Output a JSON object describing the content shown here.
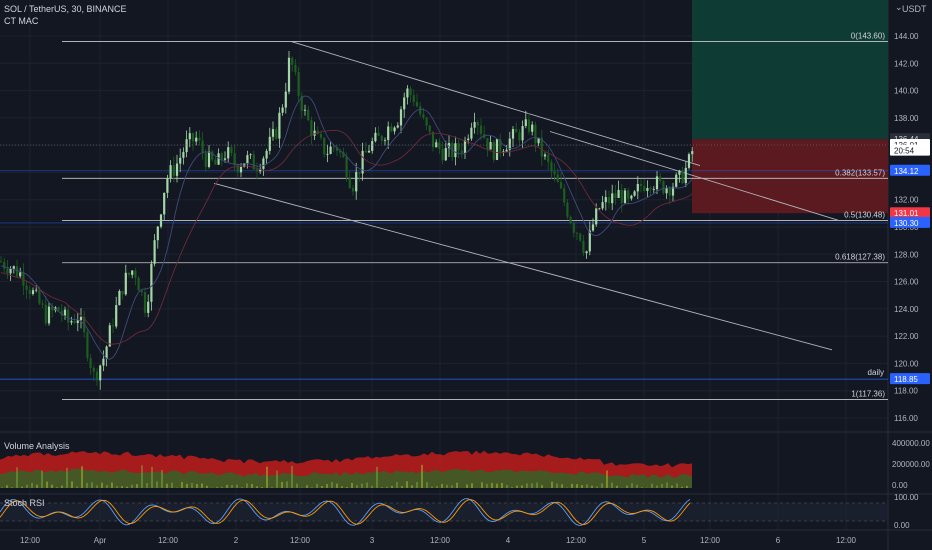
{
  "header": {
    "symbol_line": "SOL / TetherUS, 30, BINANCE",
    "indicator_line": "CT MAC",
    "currency": "USDT",
    "currency_menu": "⌄"
  },
  "panes": {
    "volume_label": "Volume Analysis",
    "stoch_label": "Stoch RSI"
  },
  "colors": {
    "background": "#131722",
    "grid": "#1e222d",
    "up": "#a5d6a7",
    "down": "#1b5e20",
    "fib_line": "#c8c8c8",
    "channel": "#b2b5be",
    "target_zone": "#0e3b34",
    "stop_zone": "#5a1a1f",
    "volume_fill": "#b71c1c",
    "volume_inner": "#3b5e27",
    "stoch_k": "#5b9cf6",
    "stoch_d": "#ff9800",
    "accent_blue": "#2962ff"
  },
  "chart_data": {
    "type": "candlestick",
    "symbol": "SOL / TetherUS",
    "interval": "30",
    "exchange": "BINANCE",
    "ylim": [
      115,
      145
    ],
    "y_ticks": [
      "144.00",
      "142.00",
      "140.00",
      "138.00",
      "136.00",
      "134.00",
      "132.00",
      "130.00",
      "128.00",
      "126.00",
      "124.00",
      "122.00",
      "120.00",
      "118.00",
      "116.00"
    ],
    "x_ticks": [
      "12:00",
      "Apr",
      "12:00",
      "2",
      "12:00",
      "3",
      "12:00",
      "4",
      "12:00",
      "5",
      "12:00",
      "6",
      "12:00"
    ],
    "close_path": [
      {
        "x": 0,
        "y": 127.5
      },
      {
        "x": 12,
        "y": 127.0
      },
      {
        "x": 22,
        "y": 126.5
      },
      {
        "x": 34,
        "y": 125.0
      },
      {
        "x": 46,
        "y": 123.5
      },
      {
        "x": 58,
        "y": 124.0
      },
      {
        "x": 68,
        "y": 123.0
      },
      {
        "x": 78,
        "y": 123.5
      },
      {
        "x": 86,
        "y": 121.5
      },
      {
        "x": 94,
        "y": 119.0
      },
      {
        "x": 104,
        "y": 120.5
      },
      {
        "x": 114,
        "y": 123.5
      },
      {
        "x": 124,
        "y": 126.0
      },
      {
        "x": 134,
        "y": 127.0
      },
      {
        "x": 146,
        "y": 124.0
      },
      {
        "x": 156,
        "y": 129.5
      },
      {
        "x": 166,
        "y": 133.5
      },
      {
        "x": 176,
        "y": 134.5
      },
      {
        "x": 186,
        "y": 136.0
      },
      {
        "x": 196,
        "y": 136.5
      },
      {
        "x": 206,
        "y": 135.0
      },
      {
        "x": 216,
        "y": 134.5
      },
      {
        "x": 226,
        "y": 135.5
      },
      {
        "x": 236,
        "y": 134.5
      },
      {
        "x": 246,
        "y": 135.0
      },
      {
        "x": 256,
        "y": 134.5
      },
      {
        "x": 266,
        "y": 135.5
      },
      {
        "x": 276,
        "y": 137.0
      },
      {
        "x": 284,
        "y": 139.5
      },
      {
        "x": 290,
        "y": 142.5
      },
      {
        "x": 296,
        "y": 140.5
      },
      {
        "x": 306,
        "y": 138.0
      },
      {
        "x": 316,
        "y": 136.5
      },
      {
        "x": 326,
        "y": 135.5
      },
      {
        "x": 336,
        "y": 136.0
      },
      {
        "x": 346,
        "y": 134.5
      },
      {
        "x": 352,
        "y": 133.0
      },
      {
        "x": 360,
        "y": 134.5
      },
      {
        "x": 370,
        "y": 136.0
      },
      {
        "x": 380,
        "y": 136.5
      },
      {
        "x": 390,
        "y": 137.5
      },
      {
        "x": 398,
        "y": 138.0
      },
      {
        "x": 406,
        "y": 140.0
      },
      {
        "x": 414,
        "y": 139.5
      },
      {
        "x": 424,
        "y": 137.5
      },
      {
        "x": 434,
        "y": 136.0
      },
      {
        "x": 444,
        "y": 135.5
      },
      {
        "x": 454,
        "y": 135.5
      },
      {
        "x": 464,
        "y": 136.0
      },
      {
        "x": 474,
        "y": 138.5
      },
      {
        "x": 482,
        "y": 137.0
      },
      {
        "x": 492,
        "y": 135.5
      },
      {
        "x": 502,
        "y": 136.0
      },
      {
        "x": 512,
        "y": 136.5
      },
      {
        "x": 522,
        "y": 137.0
      },
      {
        "x": 530,
        "y": 137.5
      },
      {
        "x": 538,
        "y": 136.0
      },
      {
        "x": 548,
        "y": 134.5
      },
      {
        "x": 558,
        "y": 133.0
      },
      {
        "x": 566,
        "y": 131.5
      },
      {
        "x": 574,
        "y": 130.0
      },
      {
        "x": 580,
        "y": 129.5
      },
      {
        "x": 586,
        "y": 128.0
      },
      {
        "x": 592,
        "y": 130.0
      },
      {
        "x": 600,
        "y": 131.5
      },
      {
        "x": 610,
        "y": 132.0
      },
      {
        "x": 620,
        "y": 132.5
      },
      {
        "x": 630,
        "y": 131.5
      },
      {
        "x": 640,
        "y": 133.0
      },
      {
        "x": 650,
        "y": 133.5
      },
      {
        "x": 660,
        "y": 133.0
      },
      {
        "x": 670,
        "y": 133.0
      },
      {
        "x": 680,
        "y": 133.5
      },
      {
        "x": 688,
        "y": 134.5
      },
      {
        "x": 694,
        "y": 136.0
      }
    ],
    "price_line_current": 136.01,
    "fib_levels": [
      {
        "label": "0(143.60)",
        "value": 143.6
      },
      {
        "label": "0.382(133.57)",
        "value": 133.57
      },
      {
        "label": "0.5(130.48)",
        "value": 130.48
      },
      {
        "label": "0.618(127.38)",
        "value": 127.38
      },
      {
        "label": "1(117.36)",
        "value": 117.36
      }
    ],
    "daily_level": {
      "label": "daily",
      "value": 118.85
    },
    "channel_upper": [
      {
        "x": 291,
        "y": 143.6
      },
      {
        "x": 700,
        "y": 134.5
      }
    ],
    "channel_lower": [
      {
        "x": 214,
        "y": 133.2
      },
      {
        "x": 832,
        "y": 121.0
      }
    ],
    "channel_parallel_line": [
      {
        "x": 550,
        "y": 137.0
      },
      {
        "x": 838,
        "y": 130.5
      }
    ],
    "position": {
      "entry": 136.44,
      "target": 145.0,
      "stop": 131.01
    },
    "price_labels": [
      {
        "text": "136.44",
        "value": 136.44,
        "style": "entry"
      },
      {
        "text": "136.01",
        "value": 136.01,
        "style": "current"
      },
      {
        "text": "20:54",
        "value": 135.6,
        "style": "countdown"
      },
      {
        "text": "134.12",
        "value": 134.12,
        "style": "blue"
      },
      {
        "text": "131.01",
        "value": 131.01,
        "style": "red"
      },
      {
        "text": "130.30",
        "value": 130.3,
        "style": "blue"
      },
      {
        "text": "118.85",
        "value": 118.85,
        "style": "blue"
      }
    ],
    "volume_axis": [
      "400000.00",
      "200000.00",
      "0.00"
    ],
    "stoch_axis": [
      "100.00",
      "0.00"
    ]
  }
}
